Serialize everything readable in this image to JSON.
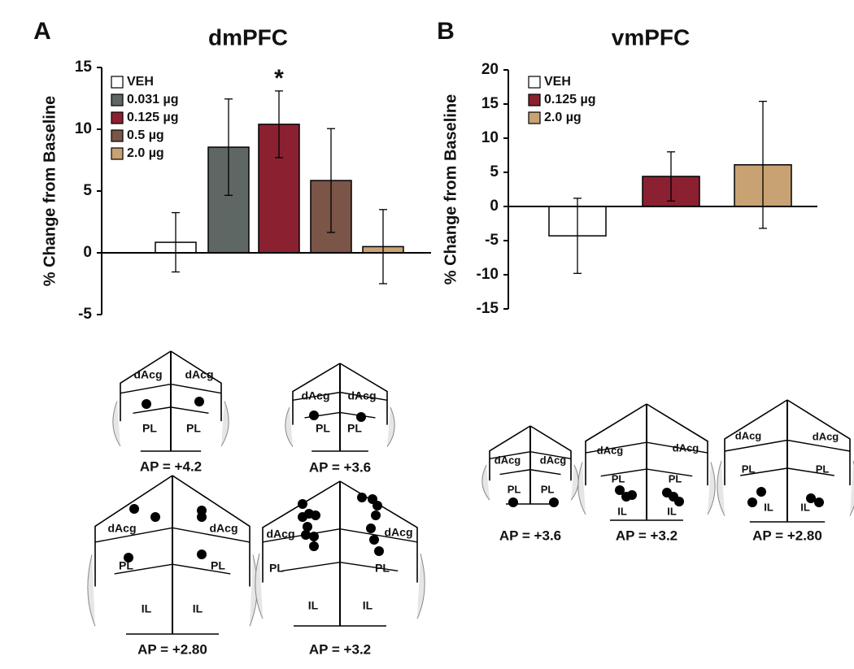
{
  "chart_data": [
    {
      "type": "bar",
      "panel_label": "A",
      "title": "dmPFC",
      "y_label": "% Change from Baseline",
      "ylim": [
        -5,
        15
      ],
      "yticks": [
        -5,
        0,
        5,
        10,
        15
      ],
      "series": [
        {
          "name": "VEH",
          "color": "#ffffff",
          "values": [
            0.85
          ],
          "errors": [
            2.4
          ]
        },
        {
          "name": "0.031 µg",
          "color": "#5e6763",
          "values": [
            8.55
          ],
          "errors": [
            3.9
          ]
        },
        {
          "name": "0.125 µg",
          "color": "#8b2130",
          "values": [
            10.4
          ],
          "errors": [
            2.7
          ],
          "annotation": "*"
        },
        {
          "name": "0.5 µg",
          "color": "#7a5548",
          "values": [
            5.85
          ],
          "errors": [
            4.2
          ]
        },
        {
          "name": "2.0 µg",
          "color": "#c8a273",
          "values": [
            0.5
          ],
          "errors": [
            3.0
          ]
        }
      ]
    },
    {
      "type": "bar",
      "panel_label": "B",
      "title": "vmPFC",
      "y_label": "% Change from Baseline",
      "ylim": [
        -15,
        20
      ],
      "yticks": [
        -15,
        -10,
        -5,
        0,
        5,
        10,
        15,
        20
      ],
      "series": [
        {
          "name": "VEH",
          "color": "#ffffff",
          "values": [
            -4.3
          ],
          "errors": [
            5.5
          ]
        },
        {
          "name": "0.125 µg",
          "color": "#8b2130",
          "values": [
            4.4
          ],
          "errors": [
            3.6
          ]
        },
        {
          "name": "2.0 µg",
          "color": "#c8a273",
          "values": [
            6.1
          ],
          "errors": [
            9.3
          ]
        }
      ]
    }
  ],
  "sections": [
    {
      "caption": "AP = +4.2",
      "regions": [
        "dAcg",
        "dAcg",
        "PL",
        "PL"
      ]
    },
    {
      "caption": "AP = +3.6",
      "regions": [
        "dAcg",
        "dAcg",
        "PL",
        "PL"
      ]
    },
    {
      "caption": "AP = +2.80",
      "regions": [
        "dAcg",
        "dAcg",
        "PL",
        "PL",
        "IL",
        "IL"
      ]
    },
    {
      "caption": "AP = +3.2",
      "regions": [
        "dAcg",
        "dAcg",
        "PL",
        "PL",
        "IL",
        "IL"
      ]
    },
    {
      "caption": "AP = +3.6",
      "regions": [
        "dAcg",
        "dAcg",
        "PL",
        "PL"
      ]
    },
    {
      "caption": "AP = +3.2",
      "regions": [
        "dAcg",
        "dAcg",
        "PL",
        "PL",
        "IL",
        "IL"
      ]
    },
    {
      "caption": "AP = +2.80",
      "regions": [
        "dAcg",
        "dAcg",
        "PL",
        "PL",
        "IL",
        "IL"
      ]
    }
  ]
}
